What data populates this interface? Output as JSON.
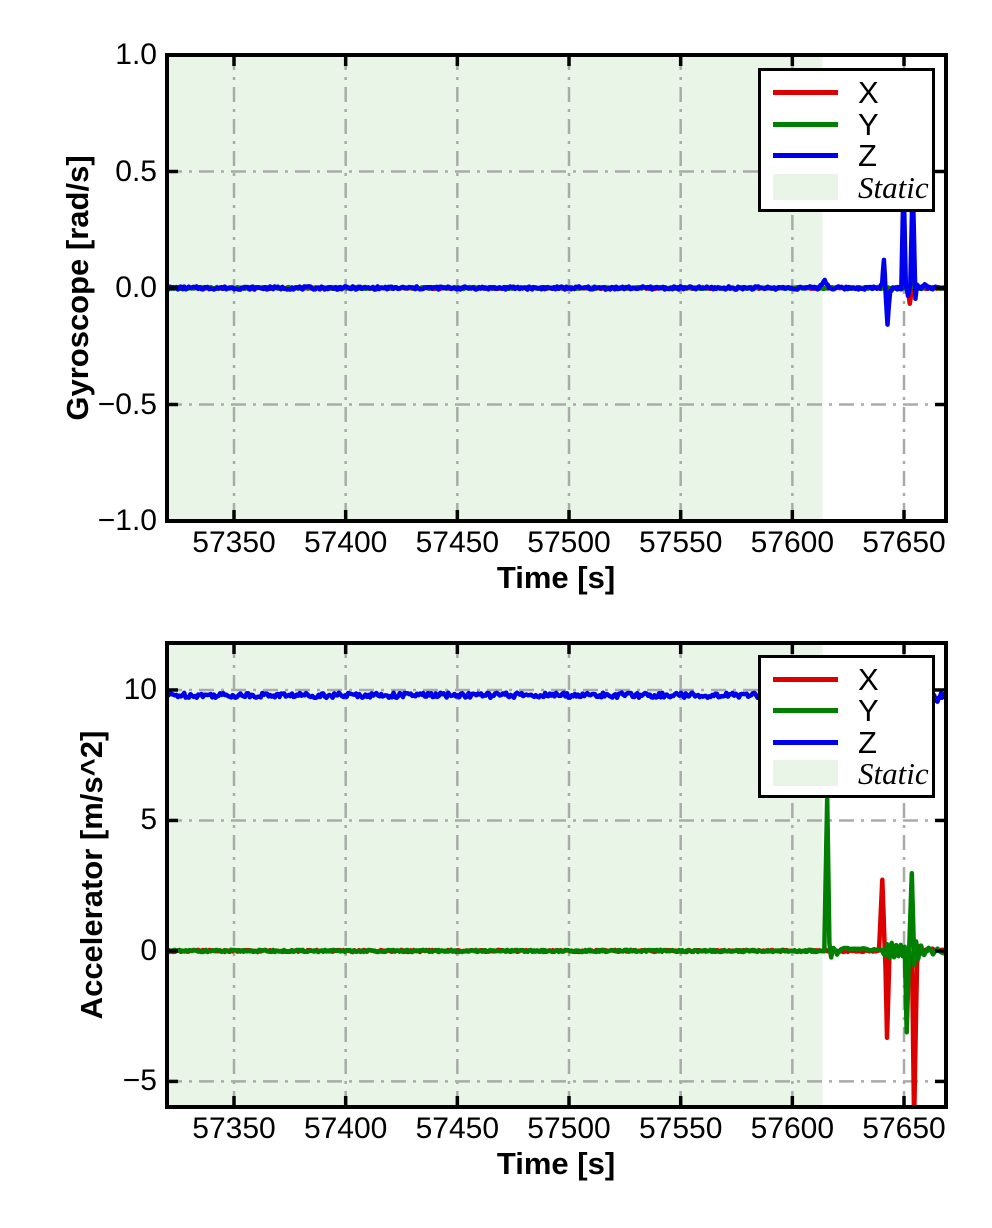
{
  "figure": {
    "background": "#ffffff"
  },
  "chart_data": [
    {
      "type": "line",
      "title": "",
      "xlabel": "Time [s]",
      "ylabel": "Gyroscope [rad/s]",
      "xlim": [
        57320,
        57668.8
      ],
      "ylim": [
        -1.0,
        1.0
      ],
      "xticks": [
        57350,
        57400,
        57450,
        57500,
        57550,
        57600,
        57650
      ],
      "xticklabels": [
        "57350",
        "57400",
        "57450",
        "57500",
        "57550",
        "57600",
        "57650"
      ],
      "yticks": [
        1.0,
        0.5,
        0.0,
        -0.5,
        -1.0
      ],
      "yticklabels": [
        "1.0",
        "0.5",
        "0.0",
        "−0.5",
        "−1.0"
      ],
      "grid": {
        "on": true,
        "style": "dash-dot",
        "color": "#aaaaaa"
      },
      "static_region": {
        "label": "Static",
        "x_start": 57320,
        "x_end": 57613.5,
        "color": "#e9f6e7"
      },
      "legend": {
        "position": "upper-right",
        "entries": [
          {
            "label": "X",
            "color": "#dd0000",
            "kind": "line"
          },
          {
            "label": "Y",
            "color": "#008000",
            "kind": "line"
          },
          {
            "label": "Z",
            "color": "#0000ee",
            "kind": "line"
          },
          {
            "label": "Static",
            "color": "#e9f6e7",
            "kind": "patch"
          }
        ]
      },
      "series": [
        {
          "name": "X",
          "color": "#dd0000",
          "noise": 0.004,
          "points": [
            [
              57320,
              0
            ],
            [
              57651.5,
              0
            ],
            [
              57652.6,
              -0.065
            ],
            [
              57653.6,
              0
            ],
            [
              57668.8,
              0
            ]
          ]
        },
        {
          "name": "Y",
          "color": "#008000",
          "noise": 0.004,
          "points": [
            [
              57320,
              0
            ],
            [
              57652.8,
              0
            ],
            [
              57653.6,
              0.035
            ],
            [
              57654.4,
              0
            ],
            [
              57668.8,
              0
            ]
          ]
        },
        {
          "name": "Z",
          "color": "#0000ee",
          "noise": 0.007,
          "points": [
            [
              57320,
              0
            ],
            [
              57612,
              0
            ],
            [
              57614.5,
              0.035
            ],
            [
              57616.5,
              0
            ],
            [
              57638.5,
              0
            ],
            [
              57640.2,
              0.012
            ],
            [
              57641.0,
              0.125
            ],
            [
              57641.8,
              -0.02
            ],
            [
              57642.6,
              -0.155
            ],
            [
              57643.8,
              -0.01
            ],
            [
              57645,
              0
            ],
            [
              57648.8,
              0
            ],
            [
              57649.8,
              0.46
            ],
            [
              57650.8,
              0.01
            ],
            [
              57651.8,
              -0.03
            ],
            [
              57652.8,
              0.02
            ],
            [
              57653.9,
              0.46
            ],
            [
              57655.1,
              -0.05
            ],
            [
              57655.8,
              0.02
            ],
            [
              57657,
              0
            ],
            [
              57659.8,
              0.018
            ],
            [
              57660.8,
              0
            ],
            [
              57668.8,
              0
            ]
          ]
        }
      ]
    },
    {
      "type": "line",
      "title": "",
      "xlabel": "Time [s]",
      "ylabel": "Accelerator [m/s^2]",
      "xlim": [
        57320,
        57668.8
      ],
      "ylim": [
        -5.98,
        11.8
      ],
      "xticks": [
        57350,
        57400,
        57450,
        57500,
        57550,
        57600,
        57650
      ],
      "xticklabels": [
        "57350",
        "57400",
        "57450",
        "57500",
        "57550",
        "57600",
        "57650"
      ],
      "yticks": [
        10,
        5,
        0,
        -5
      ],
      "yticklabels": [
        "10",
        "5",
        "0",
        "−5"
      ],
      "grid": {
        "on": true,
        "style": "dash-dot",
        "color": "#aaaaaa"
      },
      "static_region": {
        "label": "Static",
        "x_start": 57320,
        "x_end": 57613.5,
        "color": "#e9f6e7"
      },
      "legend": {
        "position": "upper-right",
        "entries": [
          {
            "label": "X",
            "color": "#dd0000",
            "kind": "line"
          },
          {
            "label": "Y",
            "color": "#008000",
            "kind": "line"
          },
          {
            "label": "Z",
            "color": "#0000ee",
            "kind": "line"
          },
          {
            "label": "Static",
            "color": "#e9f6e7",
            "kind": "patch"
          }
        ]
      },
      "series": [
        {
          "name": "X",
          "color": "#dd0000",
          "noise": 0.04,
          "points": [
            [
              57320,
              0
            ],
            [
              57638.8,
              0
            ],
            [
              57640.3,
              2.7
            ],
            [
              57641.2,
              0.4
            ],
            [
              57641.7,
              -0.6
            ],
            [
              57642.4,
              -3.3
            ],
            [
              57643.4,
              -0.3
            ],
            [
              57644.4,
              0.15
            ],
            [
              57646,
              -0.1
            ],
            [
              57648,
              0.08
            ],
            [
              57650,
              -0.08
            ],
            [
              57652.5,
              -0.05
            ],
            [
              57653.6,
              -0.5
            ],
            [
              57654.5,
              -6.6
            ],
            [
              57655.8,
              -0.5
            ],
            [
              57656.8,
              0.2
            ],
            [
              57658,
              -0.1
            ],
            [
              57660,
              0.08
            ],
            [
              57668.8,
              0
            ]
          ]
        },
        {
          "name": "Y",
          "color": "#008000",
          "noise": 0.04,
          "points": [
            [
              57320,
              0
            ],
            [
              57614.3,
              0
            ],
            [
              57615.6,
              5.9
            ],
            [
              57616.6,
              0.3
            ],
            [
              57617.4,
              -0.25
            ],
            [
              57618.4,
              0.15
            ],
            [
              57620,
              -0.1
            ],
            [
              57622,
              0.08
            ],
            [
              57640,
              0.05
            ],
            [
              57641.5,
              -0.2
            ],
            [
              57642.5,
              0.25
            ],
            [
              57643.5,
              -0.25
            ],
            [
              57644.5,
              0.3
            ],
            [
              57645.5,
              -0.25
            ],
            [
              57646.5,
              0.25
            ],
            [
              57647.5,
              -0.2
            ],
            [
              57648.5,
              0.22
            ],
            [
              57649.5,
              -0.18
            ],
            [
              57650.3,
              0.15
            ],
            [
              57651.2,
              -3.1
            ],
            [
              57652.4,
              0.3
            ],
            [
              57653.5,
              2.95
            ],
            [
              57654.6,
              -0.5
            ],
            [
              57655.4,
              0.35
            ],
            [
              57656.4,
              -0.25
            ],
            [
              57657.6,
              0.2
            ],
            [
              57659,
              -0.15
            ],
            [
              57661,
              0.12
            ],
            [
              57663,
              -0.1
            ],
            [
              57665,
              0.1
            ],
            [
              57667,
              -0.08
            ],
            [
              57668.8,
              0
            ]
          ]
        },
        {
          "name": "Z",
          "color": "#0000ee",
          "noise": 0.1,
          "points": [
            [
              57320,
              9.8
            ],
            [
              57663.5,
              9.8
            ],
            [
              57665,
              9.5
            ],
            [
              57666.5,
              9.8
            ],
            [
              57668.8,
              9.72
            ]
          ]
        }
      ]
    }
  ]
}
